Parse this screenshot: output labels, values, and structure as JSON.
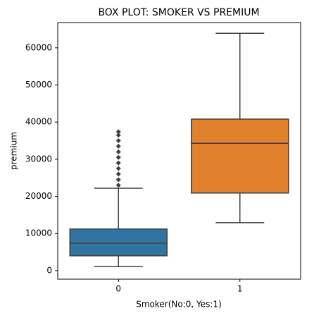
{
  "chart_data": {
    "type": "box",
    "title": "BOX PLOT: SMOKER VS PREMIUM",
    "x_label": "Smoker(No:0, Yes:1)",
    "y_label": "premium",
    "categories": [
      "0",
      "1"
    ],
    "colors": [
      "#3274a1",
      "#e1812c"
    ],
    "boxes": [
      {
        "min": 1100,
        "q1": 4000,
        "median": 7400,
        "q3": 11200,
        "max": 22200,
        "outliers": [
          23000,
          24500,
          26000,
          27500,
          29000,
          30500,
          32000,
          33500,
          35000,
          36500,
          37400
        ]
      },
      {
        "min": 12900,
        "q1": 20900,
        "median": 34300,
        "q3": 40800,
        "max": 63900,
        "outliers": []
      }
    ],
    "ylim": [
      -2300,
      66800
    ],
    "yticks": [
      0,
      10000,
      20000,
      30000,
      40000,
      50000,
      60000
    ]
  }
}
